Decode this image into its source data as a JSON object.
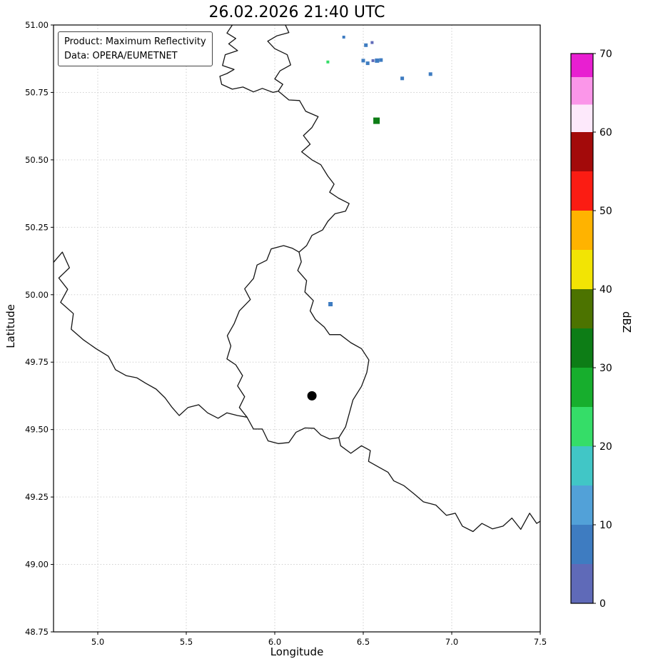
{
  "info_box": {
    "product_line": "Product: Maximum Reflectivity",
    "data_line": "Data: OPERA/EUMETNET"
  },
  "axes": {
    "xticks": [
      {
        "v": 5.0,
        "label": "5.0"
      },
      {
        "v": 5.5,
        "label": "5.5"
      },
      {
        "v": 6.0,
        "label": "6.0"
      },
      {
        "v": 6.5,
        "label": "6.5"
      },
      {
        "v": 7.0,
        "label": "7.0"
      },
      {
        "v": 7.5,
        "label": "7.5"
      }
    ],
    "yticks": [
      {
        "v": 51.0,
        "label": "51.00"
      },
      {
        "v": 50.75,
        "label": "50.75"
      },
      {
        "v": 50.5,
        "label": "50.50"
      },
      {
        "v": 50.25,
        "label": "50.25"
      },
      {
        "v": 50.0,
        "label": "50.00"
      },
      {
        "v": 49.75,
        "label": "49.75"
      },
      {
        "v": 49.5,
        "label": "49.50"
      },
      {
        "v": 49.25,
        "label": "49.25"
      },
      {
        "v": 49.0,
        "label": "49.00"
      },
      {
        "v": 48.75,
        "label": "48.75"
      }
    ]
  },
  "colorbar": {
    "label": "dBZ",
    "range": [
      0,
      70
    ],
    "ticks": [
      0,
      10,
      20,
      30,
      40,
      50,
      60,
      70
    ],
    "segments": [
      {
        "from": 0,
        "to": 5,
        "color": "#5f6ab8"
      },
      {
        "from": 5,
        "to": 10,
        "color": "#3e7cc1"
      },
      {
        "from": 10,
        "to": 15,
        "color": "#52a1d8"
      },
      {
        "from": 15,
        "to": 20,
        "color": "#41c6c6"
      },
      {
        "from": 20,
        "to": 25,
        "color": "#35dd68"
      },
      {
        "from": 25,
        "to": 30,
        "color": "#17ae2d"
      },
      {
        "from": 30,
        "to": 35,
        "color": "#0d7d16"
      },
      {
        "from": 35,
        "to": 40,
        "color": "#4c7300"
      },
      {
        "from": 40,
        "to": 45,
        "color": "#f2e404"
      },
      {
        "from": 45,
        "to": 50,
        "color": "#ffb300"
      },
      {
        "from": 50,
        "to": 55,
        "color": "#fb1c13"
      },
      {
        "from": 55,
        "to": 60,
        "color": "#a30a0a"
      },
      {
        "from": 60,
        "to": 63.5,
        "color": "#fde9fb"
      },
      {
        "from": 63.5,
        "to": 67,
        "color": "#fb96e9"
      },
      {
        "from": 67,
        "to": 70,
        "color": "#e81fd1"
      }
    ]
  },
  "chart_data": {
    "type": "scatter",
    "description": "Weather radar maximum reflectivity map over the Luxembourg / Belgium / Germany / France border region with country borders and dBZ colorbar",
    "title": "26.02.2026 21:40 UTC",
    "xlabel": "Longitude",
    "ylabel": "Latitude",
    "xlim": [
      4.75,
      7.5
    ],
    "ylim": [
      48.75,
      51.0
    ],
    "grid": "dotted",
    "legend_position": "upper-left-info-box",
    "radar_site": {
      "lon": 6.21,
      "lat": 49.625
    },
    "echoes": [
      {
        "lon": 6.39,
        "lat": 50.955,
        "dbz": 7,
        "size": 4
      },
      {
        "lon": 6.515,
        "lat": 50.925,
        "dbz": 7,
        "size": 5
      },
      {
        "lon": 6.55,
        "lat": 50.935,
        "dbz": 3,
        "size": 4
      },
      {
        "lon": 6.3,
        "lat": 50.863,
        "dbz": 22,
        "size": 4
      },
      {
        "lon": 6.5,
        "lat": 50.868,
        "dbz": 7,
        "size": 5
      },
      {
        "lon": 6.525,
        "lat": 50.858,
        "dbz": 7,
        "size": 5
      },
      {
        "lon": 6.555,
        "lat": 50.868,
        "dbz": 3,
        "size": 4
      },
      {
        "lon": 6.578,
        "lat": 50.868,
        "dbz": 8,
        "size": 6
      },
      {
        "lon": 6.6,
        "lat": 50.87,
        "dbz": 8,
        "size": 5
      },
      {
        "lon": 6.72,
        "lat": 50.802,
        "dbz": 7,
        "size": 5
      },
      {
        "lon": 6.88,
        "lat": 50.818,
        "dbz": 7,
        "size": 5
      },
      {
        "lon": 6.575,
        "lat": 50.645,
        "dbz": 32,
        "size": 9
      },
      {
        "lon": 6.315,
        "lat": 49.965,
        "dbz": 7,
        "size": 6
      }
    ],
    "borders": [
      {
        "name": "be-nl-meuse",
        "points": [
          [
            5.76,
            51.0
          ],
          [
            5.73,
            50.97
          ],
          [
            5.78,
            50.95
          ],
          [
            5.74,
            50.93
          ],
          [
            5.79,
            50.905
          ],
          [
            5.72,
            50.89
          ],
          [
            5.705,
            50.85
          ],
          [
            5.77,
            50.835
          ],
          [
            5.73,
            50.82
          ],
          [
            5.69,
            50.81
          ],
          [
            5.7,
            50.78
          ],
          [
            5.76,
            50.762
          ],
          [
            5.82,
            50.77
          ],
          [
            5.88,
            50.752
          ],
          [
            5.93,
            50.765
          ],
          [
            5.99,
            50.75
          ],
          [
            6.02,
            50.755
          ]
        ]
      },
      {
        "name": "nl-de",
        "points": [
          [
            6.02,
            50.755
          ],
          [
            6.045,
            50.78
          ],
          [
            6.0,
            50.8
          ],
          [
            6.03,
            50.83
          ],
          [
            6.09,
            50.852
          ],
          [
            6.07,
            50.89
          ],
          [
            6.0,
            50.912
          ],
          [
            5.96,
            50.94
          ],
          [
            6.013,
            50.96
          ],
          [
            6.08,
            50.972
          ],
          [
            6.06,
            51.0
          ]
        ]
      },
      {
        "name": "be-de",
        "points": [
          [
            6.02,
            50.755
          ],
          [
            6.08,
            50.722
          ],
          [
            6.14,
            50.72
          ],
          [
            6.175,
            50.68
          ],
          [
            6.245,
            50.66
          ],
          [
            6.21,
            50.62
          ],
          [
            6.162,
            50.59
          ],
          [
            6.2,
            50.558
          ],
          [
            6.152,
            50.53
          ],
          [
            6.21,
            50.5
          ],
          [
            6.26,
            50.482
          ],
          [
            6.3,
            50.44
          ],
          [
            6.335,
            50.41
          ],
          [
            6.31,
            50.38
          ],
          [
            6.36,
            50.358
          ],
          [
            6.42,
            50.338
          ],
          [
            6.4,
            50.31
          ],
          [
            6.34,
            50.3
          ],
          [
            6.3,
            50.272
          ],
          [
            6.27,
            50.24
          ],
          [
            6.21,
            50.22
          ],
          [
            6.18,
            50.182
          ],
          [
            6.137,
            50.158
          ]
        ]
      },
      {
        "name": "be-lu",
        "points": [
          [
            6.137,
            50.158
          ],
          [
            6.1,
            50.172
          ],
          [
            6.05,
            50.182
          ],
          [
            5.98,
            50.17
          ],
          [
            5.955,
            50.128
          ],
          [
            5.9,
            50.11
          ],
          [
            5.88,
            50.06
          ],
          [
            5.83,
            50.022
          ],
          [
            5.862,
            49.982
          ],
          [
            5.8,
            49.94
          ],
          [
            5.77,
            49.892
          ],
          [
            5.732,
            49.848
          ],
          [
            5.752,
            49.81
          ],
          [
            5.73,
            49.762
          ],
          [
            5.78,
            49.74
          ],
          [
            5.818,
            49.7
          ],
          [
            5.79,
            49.662
          ],
          [
            5.83,
            49.622
          ],
          [
            5.8,
            49.582
          ],
          [
            5.843,
            49.546
          ]
        ]
      },
      {
        "name": "lu-fr",
        "points": [
          [
            5.843,
            49.546
          ],
          [
            5.88,
            49.502
          ],
          [
            5.93,
            49.502
          ],
          [
            5.962,
            49.458
          ],
          [
            6.02,
            49.448
          ],
          [
            6.08,
            49.452
          ],
          [
            6.12,
            49.49
          ],
          [
            6.17,
            49.506
          ],
          [
            6.222,
            49.505
          ],
          [
            6.26,
            49.48
          ],
          [
            6.31,
            49.465
          ],
          [
            6.362,
            49.47
          ]
        ]
      },
      {
        "name": "lu-de",
        "points": [
          [
            6.362,
            49.47
          ],
          [
            6.4,
            49.51
          ],
          [
            6.42,
            49.558
          ],
          [
            6.442,
            49.61
          ],
          [
            6.49,
            49.66
          ],
          [
            6.52,
            49.712
          ],
          [
            6.532,
            49.758
          ],
          [
            6.49,
            49.8
          ],
          [
            6.43,
            49.822
          ],
          [
            6.37,
            49.852
          ],
          [
            6.31,
            49.852
          ],
          [
            6.28,
            49.88
          ],
          [
            6.23,
            49.908
          ],
          [
            6.2,
            49.94
          ],
          [
            6.218,
            49.978
          ],
          [
            6.17,
            50.01
          ],
          [
            6.18,
            50.052
          ],
          [
            6.13,
            50.09
          ],
          [
            6.15,
            50.122
          ],
          [
            6.137,
            50.158
          ]
        ]
      },
      {
        "name": "be-fr",
        "points": [
          [
            4.75,
            50.12
          ],
          [
            4.8,
            50.158
          ],
          [
            4.84,
            50.1
          ],
          [
            4.78,
            50.062
          ],
          [
            4.83,
            50.02
          ],
          [
            4.79,
            49.972
          ],
          [
            4.862,
            49.93
          ],
          [
            4.85,
            49.872
          ],
          [
            4.92,
            49.832
          ],
          [
            4.99,
            49.8
          ],
          [
            5.06,
            49.772
          ],
          [
            5.1,
            49.722
          ],
          [
            5.16,
            49.7
          ],
          [
            5.22,
            49.692
          ],
          [
            5.27,
            49.672
          ],
          [
            5.33,
            49.65
          ],
          [
            5.38,
            49.618
          ],
          [
            5.42,
            49.582
          ],
          [
            5.46,
            49.552
          ],
          [
            5.51,
            49.582
          ],
          [
            5.57,
            49.592
          ],
          [
            5.62,
            49.562
          ],
          [
            5.68,
            49.542
          ],
          [
            5.73,
            49.562
          ],
          [
            5.79,
            49.552
          ],
          [
            5.843,
            49.546
          ]
        ]
      },
      {
        "name": "fr-de",
        "points": [
          [
            6.362,
            49.47
          ],
          [
            6.372,
            49.44
          ],
          [
            6.43,
            49.412
          ],
          [
            6.49,
            49.44
          ],
          [
            6.54,
            49.422
          ],
          [
            6.53,
            49.382
          ],
          [
            6.59,
            49.36
          ],
          [
            6.64,
            49.342
          ],
          [
            6.672,
            49.31
          ],
          [
            6.73,
            49.292
          ],
          [
            6.79,
            49.26
          ],
          [
            6.84,
            49.232
          ],
          [
            6.91,
            49.22
          ],
          [
            6.97,
            49.182
          ],
          [
            7.02,
            49.19
          ],
          [
            7.06,
            49.142
          ],
          [
            7.12,
            49.122
          ],
          [
            7.17,
            49.152
          ],
          [
            7.23,
            49.132
          ],
          [
            7.29,
            49.142
          ],
          [
            7.34,
            49.172
          ],
          [
            7.39,
            49.13
          ],
          [
            7.44,
            49.19
          ],
          [
            7.48,
            49.152
          ],
          [
            7.5,
            49.16
          ]
        ]
      }
    ]
  }
}
